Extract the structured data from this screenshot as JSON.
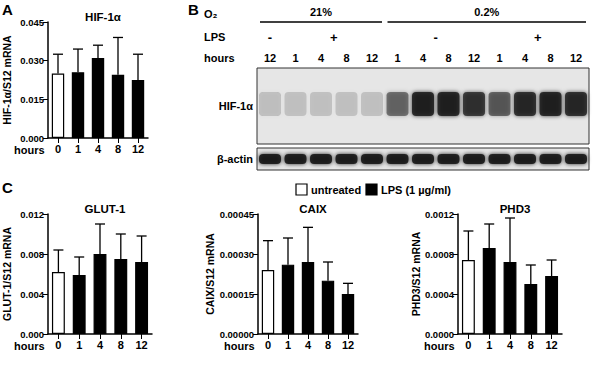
{
  "chart_data": [
    {
      "type": "bar",
      "title": "HIF-1α",
      "x_label": "hours",
      "y_label": "HIF-1α/S12 mRNA",
      "categories": [
        "0",
        "1",
        "4",
        "8",
        "12"
      ],
      "values": [
        0.025,
        0.0255,
        0.031,
        0.0245,
        0.0225
      ],
      "errors": [
        0.0075,
        0.009,
        0.005,
        0.0145,
        0.01
      ],
      "colors": [
        "#ffffff",
        "#000000",
        "#000000",
        "#000000",
        "#000000"
      ],
      "ylim": [
        0,
        0.045
      ],
      "yticks": [
        {
          "value": 0,
          "label": "0.000"
        },
        0.015,
        {
          "value": 0.03,
          "label": "0.030"
        },
        0.045
      ],
      "grid": false
    },
    {
      "type": "bar",
      "title": "GLUT-1",
      "x_label": "hours",
      "y_label": "GLUT-1/S12 mRNA",
      "categories": [
        "0",
        "1",
        "4",
        "8",
        "12"
      ],
      "values": [
        0.0062,
        0.0059,
        0.008,
        0.0075,
        0.0072
      ],
      "errors": [
        0.0022,
        0.0018,
        0.003,
        0.0025,
        0.0026
      ],
      "colors": [
        "#ffffff",
        "#000000",
        "#000000",
        "#000000",
        "#000000"
      ],
      "ylim": [
        0,
        0.012
      ],
      "yticks": [
        {
          "value": 0,
          "label": "0.000"
        },
        0.004,
        0.008,
        0.012
      ],
      "grid": false
    },
    {
      "type": "bar",
      "title": "CAIX",
      "x_label": "hours",
      "y_label": "CAIX/S12 mRNA",
      "categories": [
        "0",
        "1",
        "4",
        "8",
        "12"
      ],
      "values": [
        0.00024,
        0.00026,
        0.00027,
        0.0002,
        0.00015
      ],
      "errors": [
        0.00011,
        0.0001,
        0.00013,
        7e-05,
        4e-05
      ],
      "colors": [
        "#ffffff",
        "#000000",
        "#000000",
        "#000000",
        "#000000"
      ],
      "ylim": [
        0,
        0.00045
      ],
      "yticks": [
        {
          "value": 0,
          "label": "0.00000"
        },
        {
          "value": 0.00015,
          "label": "0.00015"
        },
        {
          "value": 0.0003,
          "label": "0.00030"
        },
        {
          "value": 0.00045,
          "label": "0.00045"
        }
      ],
      "grid": false
    },
    {
      "type": "bar",
      "title": "PHD3",
      "x_label": "hours",
      "y_label": "PHD3/S12 mRNA",
      "categories": [
        "0",
        "1",
        "4",
        "8",
        "12"
      ],
      "values": [
        0.00074,
        0.00086,
        0.00072,
        0.0005,
        0.00058
      ],
      "errors": [
        0.00029,
        0.00024,
        0.00044,
        0.00019,
        0.00016
      ],
      "colors": [
        "#ffffff",
        "#000000",
        "#000000",
        "#000000",
        "#000000"
      ],
      "ylim": [
        0,
        0.0012
      ],
      "yticks": [
        {
          "value": 0,
          "label": "0.0000"
        },
        {
          "value": 0.0004,
          "label": "0.0004"
        },
        {
          "value": 0.0008,
          "label": "0.0008"
        },
        {
          "value": 0.0012,
          "label": "0.0012"
        }
      ],
      "grid": false
    }
  ],
  "panel_labels": [
    "A",
    "B",
    "C"
  ],
  "shared_legend": [
    {
      "name": "untreated",
      "color": "#ffffff"
    },
    {
      "name": "LPS (1 µg/ml)",
      "color": "#000000"
    }
  ],
  "blot": {
    "o2_label": "O₂",
    "o2_groups": [
      {
        "label": "21%",
        "lanes": 5
      },
      {
        "label": "0.2%",
        "lanes": 8
      }
    ],
    "lps_label": "LPS",
    "lps_groups": [
      {
        "label": "-",
        "lanes": 1
      },
      {
        "label": "+",
        "lanes": 4
      },
      {
        "label": "-",
        "lanes": 4
      },
      {
        "label": "+",
        "lanes": 4
      }
    ],
    "hours_label": "hours",
    "hours": [
      "12",
      "1",
      "4",
      "8",
      "12",
      "1",
      "4",
      "8",
      "12",
      "1",
      "4",
      "8",
      "12"
    ],
    "rows": [
      {
        "label": "HIF-1α",
        "intensities": [
          0.18,
          0.15,
          0.15,
          0.15,
          0.15,
          0.5,
          0.85,
          0.85,
          0.75,
          0.55,
          0.8,
          0.85,
          0.8
        ]
      },
      {
        "label": "β-actin",
        "intensities": [
          0.9,
          0.9,
          0.9,
          0.9,
          0.9,
          0.9,
          0.9,
          0.9,
          0.9,
          0.9,
          0.9,
          0.9,
          0.9
        ]
      }
    ]
  }
}
